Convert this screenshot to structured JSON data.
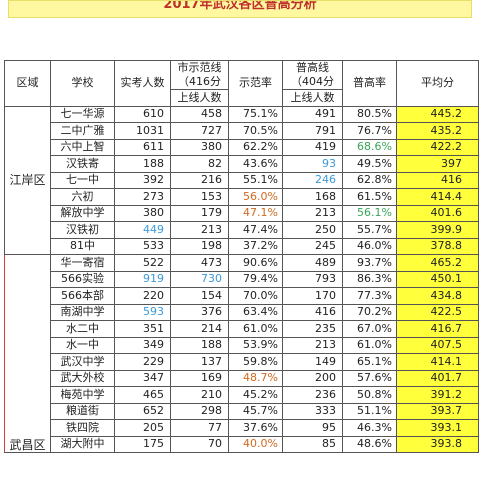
{
  "banner": {
    "title": "2017年武汉各区普高分析"
  },
  "headers": {
    "region": "区域",
    "school": "学校",
    "actual": "实考人数",
    "city_line_title": "市示范线",
    "city_line_score": "（416分",
    "city_line_count": "上线人数",
    "city_rate": "示范率",
    "general_line_title": "普高线",
    "general_line_score": "（404分",
    "general_line_count": "上线人数",
    "general_rate": "普高率",
    "average": "平均分"
  },
  "regions": {
    "jiangan": "江岸区",
    "wuchang": "武昌区"
  },
  "rows": [
    {
      "school": "七一华源",
      "actual": "610",
      "city": "458",
      "city_rate": "75.1%",
      "general": "491",
      "general_rate": "80.5%",
      "avg": "445.2"
    },
    {
      "school": "二中广雅",
      "actual": "1031",
      "city": "727",
      "city_rate": "70.5%",
      "general": "791",
      "general_rate": "76.7%",
      "avg": "435.2"
    },
    {
      "school": "六中上智",
      "actual": "611",
      "city": "380",
      "city_rate": "62.2%",
      "general": "419",
      "general_rate": "68.6%",
      "avg": "422.2"
    },
    {
      "school": "汉铁寄",
      "actual": "188",
      "city": "82",
      "city_rate": "43.6%",
      "general": "93",
      "general_rate": "49.5%",
      "avg": "397"
    },
    {
      "school": "七一中",
      "actual": "392",
      "city": "216",
      "city_rate": "55.1%",
      "general": "246",
      "general_rate": "62.8%",
      "avg": "416"
    },
    {
      "school": "六初",
      "actual": "273",
      "city": "153",
      "city_rate": "56.0%",
      "general": "168",
      "general_rate": "61.5%",
      "avg": "414.4"
    },
    {
      "school": "解放中学",
      "actual": "380",
      "city": "179",
      "city_rate": "47.1%",
      "general": "213",
      "general_rate": "56.1%",
      "avg": "401.6"
    },
    {
      "school": "汉铁初",
      "actual": "449",
      "city": "213",
      "city_rate": "47.4%",
      "general": "250",
      "general_rate": "55.7%",
      "avg": "399.9"
    },
    {
      "school": "81中",
      "actual": "533",
      "city": "198",
      "city_rate": "37.2%",
      "general": "245",
      "general_rate": "46.0%",
      "avg": "378.8"
    },
    {
      "school": "华一寄宿",
      "actual": "522",
      "city": "473",
      "city_rate": "90.6%",
      "general": "489",
      "general_rate": "93.7%",
      "avg": "465.2"
    },
    {
      "school": "566实验",
      "actual": "919",
      "city": "730",
      "city_rate": "79.4%",
      "general": "793",
      "general_rate": "86.3%",
      "avg": "450.1"
    },
    {
      "school": "566本部",
      "actual": "220",
      "city": "154",
      "city_rate": "70.0%",
      "general": "170",
      "general_rate": "77.3%",
      "avg": "434.8"
    },
    {
      "school": "南湖中学",
      "actual": "593",
      "city": "376",
      "city_rate": "63.4%",
      "general": "416",
      "general_rate": "70.2%",
      "avg": "422.5"
    },
    {
      "school": "水二中",
      "actual": "351",
      "city": "214",
      "city_rate": "61.0%",
      "general": "235",
      "general_rate": "67.0%",
      "avg": "416.7"
    },
    {
      "school": "水一中",
      "actual": "349",
      "city": "188",
      "city_rate": "53.9%",
      "general": "213",
      "general_rate": "61.0%",
      "avg": "407.5"
    },
    {
      "school": "武汉中学",
      "actual": "229",
      "city": "137",
      "city_rate": "59.8%",
      "general": "149",
      "general_rate": "65.1%",
      "avg": "414.1"
    },
    {
      "school": "武大外校",
      "actual": "347",
      "city": "169",
      "city_rate": "48.7%",
      "general": "200",
      "general_rate": "57.6%",
      "avg": "401.7"
    },
    {
      "school": "梅苑中学",
      "actual": "465",
      "city": "210",
      "city_rate": "45.2%",
      "general": "236",
      "general_rate": "50.8%",
      "avg": "391.2"
    },
    {
      "school": "粮道街",
      "actual": "652",
      "city": "298",
      "city_rate": "45.7%",
      "general": "333",
      "general_rate": "51.1%",
      "avg": "393.7"
    },
    {
      "school": "铁四院",
      "actual": "205",
      "city": "77",
      "city_rate": "37.6%",
      "general": "95",
      "general_rate": "46.3%",
      "avg": "393.1"
    },
    {
      "school": "湖大附中",
      "actual": "175",
      "city": "70",
      "city_rate": "40.0%",
      "general": "85",
      "general_rate": "48.6%",
      "avg": "393.8"
    }
  ],
  "colors": {
    "banner_bg": "#fff8a0",
    "average_highlight": "#ffff3c",
    "blue_text": "#3a9ad9",
    "green_text": "#3aa35a",
    "orange_text": "#d06a20"
  }
}
